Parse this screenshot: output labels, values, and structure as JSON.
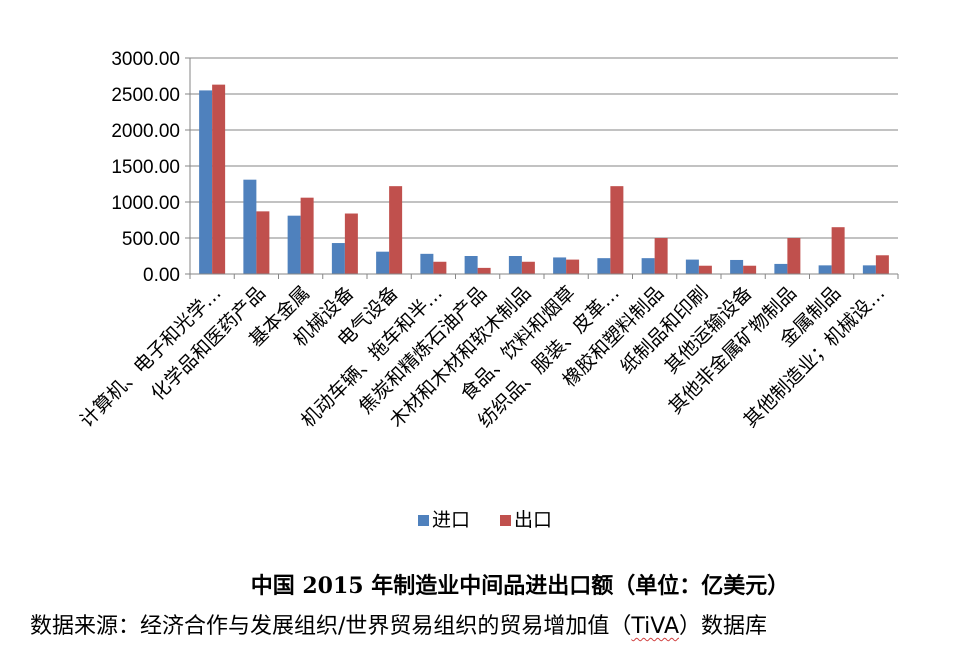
{
  "chart_data": {
    "type": "bar",
    "categories": [
      "计算机、电子和光学…",
      "化学品和医药产品",
      "基本金属",
      "机械设备",
      "电气设备",
      "机动车辆、拖车和半…",
      "焦炭和精炼石油产品",
      "木材和木材和软木制品",
      "食品、饮料和烟草",
      "纺织品、服装、皮革…",
      "橡胶和塑料制品",
      "纸制品和印刷",
      "其他运输设备",
      "其他非金属矿物制品",
      "金属制品",
      "其他制造业；机械设…"
    ],
    "series": [
      {
        "name": "进口",
        "color": "#4f81bd",
        "values": [
          2550,
          1310,
          810,
          430,
          310,
          280,
          250,
          250,
          230,
          220,
          220,
          200,
          195,
          140,
          120,
          120
        ]
      },
      {
        "name": "出口",
        "color": "#c0504d",
        "values": [
          2630,
          870,
          1060,
          840,
          1220,
          170,
          85,
          170,
          200,
          1220,
          500,
          115,
          115,
          500,
          650,
          260
        ]
      }
    ],
    "y_ticks": [
      "0.00",
      "500.00",
      "1000.00",
      "1500.00",
      "2000.00",
      "2500.00",
      "3000.00"
    ],
    "ylim": [
      0,
      3000
    ],
    "grid": true,
    "legend_position": "bottom",
    "title": "中国 2015 年制造业中间品进出口额（单位：亿美元）",
    "source": {
      "prefix": "数据来源：经济合作与发展组织/世界贸易组织的贸易增加值（",
      "highlight": "TiVA",
      "suffix": "）数据库"
    }
  }
}
